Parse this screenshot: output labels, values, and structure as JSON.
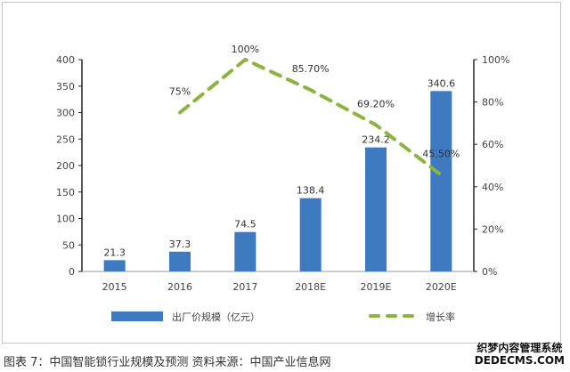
{
  "chart_data": {
    "type": "bar+line",
    "categories": [
      "2015",
      "2016",
      "2017",
      "2018E",
      "2019E",
      "2020E"
    ],
    "series": [
      {
        "name": "出厂价规模（亿元）",
        "type": "bar",
        "axis": "left",
        "color": "#3d7abf",
        "values": [
          21.3,
          37.3,
          74.5,
          138.4,
          234.2,
          340.6
        ],
        "labels": [
          "21.3",
          "37.3",
          "74.5",
          "138.4",
          "234.2",
          "340.6"
        ]
      },
      {
        "name": "增长率",
        "type": "line",
        "axis": "right",
        "style": "dashed",
        "color": "#8cb43e",
        "values": [
          null,
          75,
          100,
          85.7,
          69.2,
          45.5
        ],
        "labels": [
          "",
          "75%",
          "100%",
          "85.70%",
          "69.20%",
          "45.50%"
        ]
      }
    ],
    "left_axis": {
      "ylim": [
        0,
        400
      ],
      "ticks": [
        "0",
        "50",
        "100",
        "150",
        "200",
        "250",
        "300",
        "350",
        "400"
      ]
    },
    "right_axis": {
      "ylim": [
        0,
        100
      ],
      "ticks": [
        "0%",
        "20%",
        "40%",
        "60%",
        "80%",
        "100%"
      ]
    },
    "grid": false,
    "legend": "bottom"
  },
  "caption": "图表 7：中国智能锁行业规模及预测 资料来源：中国产业信息网",
  "watermark": {
    "line1": "织梦内容管理系统",
    "line2": "DEDECMS.COM"
  }
}
